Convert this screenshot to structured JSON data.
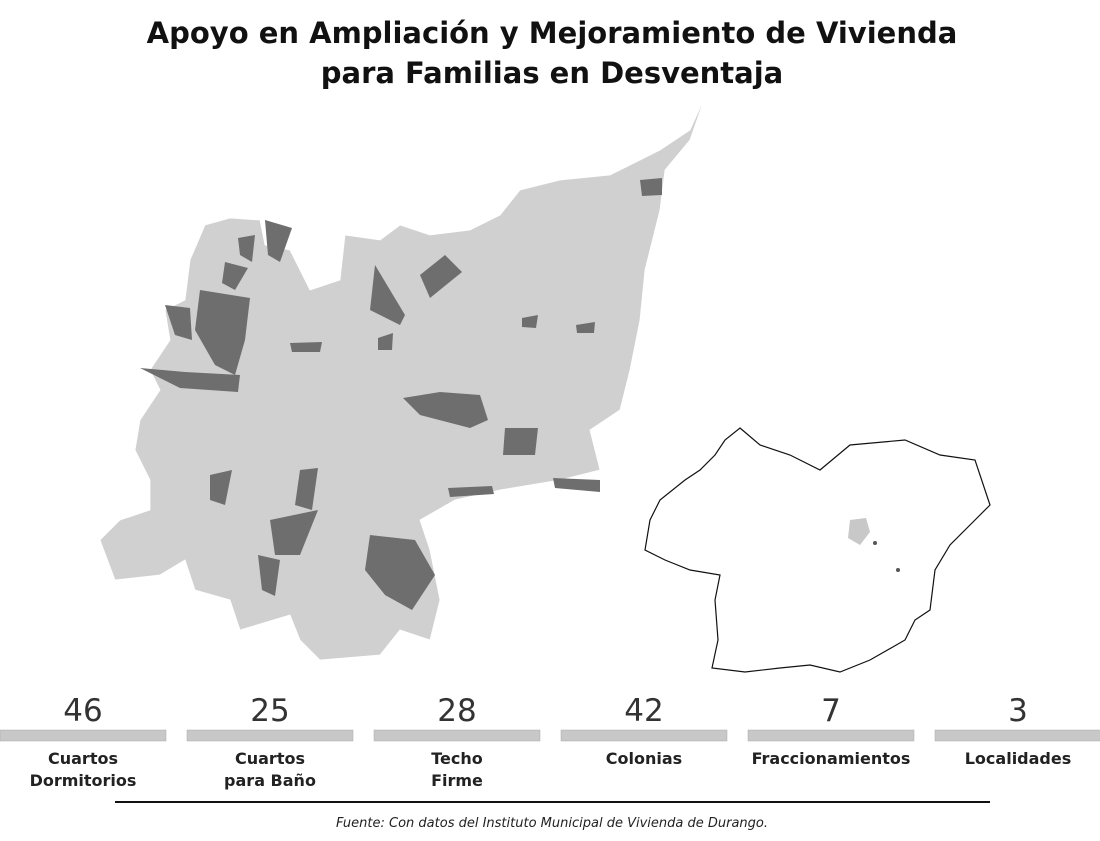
{
  "header": {
    "title": [
      "Apoyo en Ampliación y Mejoramiento de Vivienda",
      "para Familias en Desventaja"
    ]
  },
  "stats": [
    {
      "value": 46,
      "label": [
        "Cuartos",
        "Dormitorios"
      ]
    },
    {
      "value": 25,
      "label": [
        "Cuartos",
        "para Baño"
      ]
    },
    {
      "value": 28,
      "label": [
        "Techo",
        "Firme"
      ]
    },
    {
      "value": 42,
      "label": [
        "Colonias"
      ]
    },
    {
      "value": 7,
      "label": [
        "Fraccionamientos"
      ]
    },
    {
      "value": 3,
      "label": [
        "Localidades"
      ]
    }
  ],
  "footer": {
    "source": "Fuente: Con datos del Instituto Municipal de Vivienda de Durango."
  }
}
